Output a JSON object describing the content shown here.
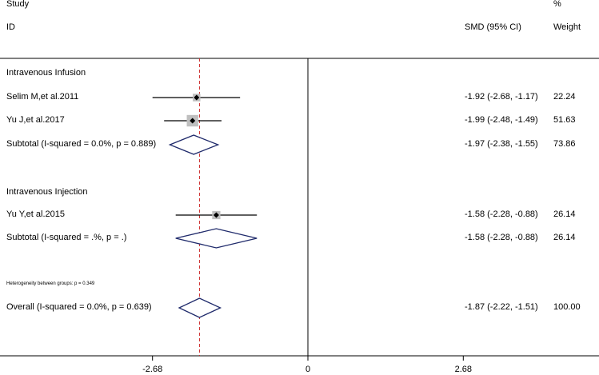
{
  "header": {
    "study": "Study",
    "id": "ID",
    "estimate": "SMD (95% CI)",
    "pct": "%",
    "weight": "Weight"
  },
  "chart_data": {
    "type": "forest",
    "null_value": 0,
    "overall_estimate": -1.87,
    "xlim": [
      -3.9,
      3.9
    ],
    "xticks": [
      "-2.68",
      "0",
      "2.68"
    ],
    "groups": [
      {
        "name": "Intravenous Infusion",
        "studies": [
          {
            "label": "Selim M,et al.2011",
            "smd": -1.92,
            "lo": -2.68,
            "hi": -1.17,
            "ci_text": "-1.92 (-2.68, -1.17)",
            "weight": "22.24"
          },
          {
            "label": "Yu J,et al.2017",
            "smd": -1.99,
            "lo": -2.48,
            "hi": -1.49,
            "ci_text": "-1.99 (-2.48, -1.49)",
            "weight": "51.63"
          }
        ],
        "subtotal": {
          "label": "Subtotal  (I-squared = 0.0%, p = 0.889)",
          "smd": -1.97,
          "lo": -2.38,
          "hi": -1.55,
          "ci_text": "-1.97 (-2.38, -1.55)",
          "weight": "73.86"
        }
      },
      {
        "name": "Intravenous Injection",
        "studies": [
          {
            "label": "Yu Y,et al.2015",
            "smd": -1.58,
            "lo": -2.28,
            "hi": -0.88,
            "ci_text": "-1.58 (-2.28, -0.88)",
            "weight": "26.14"
          }
        ],
        "subtotal": {
          "label": "Subtotal  (I-squared = .%, p = .)",
          "smd": -1.58,
          "lo": -2.28,
          "hi": -0.88,
          "ci_text": "-1.58 (-2.28, -0.88)",
          "weight": "26.14"
        }
      }
    ],
    "heterogeneity_note": "Heterogeneity between groups: p = 0.349",
    "overall": {
      "label": "Overall  (I-squared = 0.0%, p = 0.639)",
      "smd": -1.87,
      "lo": -2.22,
      "hi": -1.51,
      "ci_text": "-1.87 (-2.22, -1.51)",
      "weight": "100.00"
    }
  }
}
